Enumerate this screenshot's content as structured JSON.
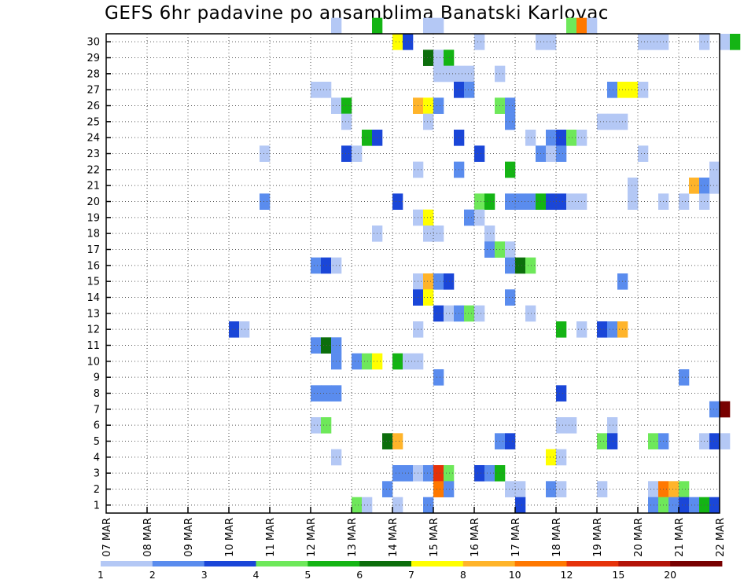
{
  "chart_data": {
    "type": "heatmap",
    "title": "GEFS 6hr padavine po ansamblima Banatski Karlovac",
    "x_tick_labels": [
      "07 MAR",
      "08 MAR",
      "09 MAR",
      "10 MAR",
      "11 MAR",
      "12 MAR",
      "13 MAR",
      "14 MAR",
      "15 MAR",
      "16 MAR",
      "17 MAR",
      "18 MAR",
      "19 MAR",
      "20 MAR",
      "21 MAR",
      "22 MAR"
    ],
    "y_tick_labels": [
      "1",
      "2",
      "3",
      "4",
      "5",
      "6",
      "7",
      "8",
      "9",
      "10",
      "11",
      "12",
      "13",
      "14",
      "15",
      "16",
      "17",
      "18",
      "19",
      "20",
      "21",
      "22",
      "23",
      "24",
      "25",
      "26",
      "27",
      "28",
      "29",
      "30"
    ],
    "grid": true,
    "colorbar": {
      "labels": [
        "1",
        "2",
        "3",
        "4",
        "5",
        "6",
        "7",
        "8",
        "10",
        "12",
        "15",
        "20"
      ],
      "colors": [
        "#b4c8f5",
        "#5a8cee",
        "#1a46d8",
        "#6ee85a",
        "#14b414",
        "#0c6e0c",
        "#ffff00",
        "#ffb42a",
        "#ff7800",
        "#e6320a",
        "#b41408",
        "#780000"
      ]
    },
    "cells": [
      {
        "d": "2025-03-12",
        "h": 12,
        "m": 30,
        "c": 1
      },
      {
        "d": "2025-03-13",
        "h": 12,
        "m": 30,
        "c": 5
      },
      {
        "d": "2025-03-14",
        "h": 18,
        "m": 30,
        "c": 1
      },
      {
        "d": "2025-03-15",
        "h": 0,
        "m": 30,
        "c": 1
      },
      {
        "d": "2025-03-18",
        "h": 6,
        "m": 30,
        "c": 4
      },
      {
        "d": "2025-03-18",
        "h": 12,
        "m": 30,
        "c": 10
      },
      {
        "d": "2025-03-18",
        "h": 18,
        "m": 30,
        "c": 1
      },
      {
        "d": "2025-03-14",
        "h": 0,
        "m": 29,
        "c": 7
      },
      {
        "d": "2025-03-14",
        "h": 6,
        "m": 29,
        "c": 3
      },
      {
        "d": "2025-03-16",
        "h": 0,
        "m": 29,
        "c": 1
      },
      {
        "d": "2025-03-17",
        "h": 12,
        "m": 29,
        "c": 1
      },
      {
        "d": "2025-03-17",
        "h": 18,
        "m": 29,
        "c": 1
      },
      {
        "d": "2025-03-20",
        "h": 0,
        "m": 29,
        "c": 1
      },
      {
        "d": "2025-03-20",
        "h": 6,
        "m": 29,
        "c": 1
      },
      {
        "d": "2025-03-20",
        "h": 12,
        "m": 29,
        "c": 1
      },
      {
        "d": "2025-03-21",
        "h": 12,
        "m": 29,
        "c": 1
      },
      {
        "d": "2025-03-22",
        "h": 0,
        "m": 29,
        "c": 1
      },
      {
        "d": "2025-03-22",
        "h": 6,
        "m": 29,
        "c": 5
      },
      {
        "d": "2025-03-14",
        "h": 18,
        "m": 28,
        "c": 6
      },
      {
        "d": "2025-03-15",
        "h": 0,
        "m": 28,
        "c": 1
      },
      {
        "d": "2025-03-15",
        "h": 6,
        "m": 28,
        "c": 5
      },
      {
        "d": "2025-03-15",
        "h": 0,
        "m": 27,
        "c": 1
      },
      {
        "d": "2025-03-15",
        "h": 6,
        "m": 27,
        "c": 1
      },
      {
        "d": "2025-03-15",
        "h": 12,
        "m": 27,
        "c": 1
      },
      {
        "d": "2025-03-15",
        "h": 18,
        "m": 27,
        "c": 1
      },
      {
        "d": "2025-03-16",
        "h": 12,
        "m": 27,
        "c": 1
      },
      {
        "d": "2025-03-12",
        "h": 0,
        "m": 26,
        "c": 1
      },
      {
        "d": "2025-03-12",
        "h": 6,
        "m": 26,
        "c": 1
      },
      {
        "d": "2025-03-15",
        "h": 12,
        "m": 26,
        "c": 3
      },
      {
        "d": "2025-03-15",
        "h": 18,
        "m": 26,
        "c": 2
      },
      {
        "d": "2025-03-19",
        "h": 6,
        "m": 26,
        "c": 2
      },
      {
        "d": "2025-03-19",
        "h": 12,
        "m": 26,
        "c": 7
      },
      {
        "d": "2025-03-19",
        "h": 18,
        "m": 26,
        "c": 7
      },
      {
        "d": "2025-03-20",
        "h": 0,
        "m": 26,
        "c": 1
      },
      {
        "d": "2025-03-12",
        "h": 12,
        "m": 25,
        "c": 1
      },
      {
        "d": "2025-03-12",
        "h": 18,
        "m": 25,
        "c": 5
      },
      {
        "d": "2025-03-14",
        "h": 12,
        "m": 25,
        "c": 8
      },
      {
        "d": "2025-03-14",
        "h": 18,
        "m": 25,
        "c": 7
      },
      {
        "d": "2025-03-15",
        "h": 0,
        "m": 25,
        "c": 2
      },
      {
        "d": "2025-03-16",
        "h": 12,
        "m": 25,
        "c": 4
      },
      {
        "d": "2025-03-16",
        "h": 18,
        "m": 25,
        "c": 2
      },
      {
        "d": "2025-03-12",
        "h": 18,
        "m": 24,
        "c": 1
      },
      {
        "d": "2025-03-14",
        "h": 18,
        "m": 24,
        "c": 1
      },
      {
        "d": "2025-03-16",
        "h": 18,
        "m": 24,
        "c": 2
      },
      {
        "d": "2025-03-19",
        "h": 0,
        "m": 24,
        "c": 1
      },
      {
        "d": "2025-03-19",
        "h": 6,
        "m": 24,
        "c": 1
      },
      {
        "d": "2025-03-19",
        "h": 12,
        "m": 24,
        "c": 1
      },
      {
        "d": "2025-03-13",
        "h": 6,
        "m": 23,
        "c": 5
      },
      {
        "d": "2025-03-13",
        "h": 12,
        "m": 23,
        "c": 3
      },
      {
        "d": "2025-03-15",
        "h": 12,
        "m": 23,
        "c": 3
      },
      {
        "d": "2025-03-17",
        "h": 6,
        "m": 23,
        "c": 1
      },
      {
        "d": "2025-03-17",
        "h": 18,
        "m": 23,
        "c": 2
      },
      {
        "d": "2025-03-18",
        "h": 0,
        "m": 23,
        "c": 3
      },
      {
        "d": "2025-03-18",
        "h": 6,
        "m": 23,
        "c": 4
      },
      {
        "d": "2025-03-18",
        "h": 12,
        "m": 23,
        "c": 1
      },
      {
        "d": "2025-03-10",
        "h": 18,
        "m": 22,
        "c": 1
      },
      {
        "d": "2025-03-12",
        "h": 18,
        "m": 22,
        "c": 3
      },
      {
        "d": "2025-03-13",
        "h": 0,
        "m": 22,
        "c": 1
      },
      {
        "d": "2025-03-16",
        "h": 0,
        "m": 22,
        "c": 3
      },
      {
        "d": "2025-03-17",
        "h": 12,
        "m": 22,
        "c": 2
      },
      {
        "d": "2025-03-17",
        "h": 18,
        "m": 22,
        "c": 1
      },
      {
        "d": "2025-03-18",
        "h": 0,
        "m": 22,
        "c": 2
      },
      {
        "d": "2025-03-20",
        "h": 0,
        "m": 22,
        "c": 1
      },
      {
        "d": "2025-03-14",
        "h": 12,
        "m": 21,
        "c": 1
      },
      {
        "d": "2025-03-15",
        "h": 12,
        "m": 21,
        "c": 2
      },
      {
        "d": "2025-03-16",
        "h": 18,
        "m": 21,
        "c": 5
      },
      {
        "d": "2025-03-21",
        "h": 18,
        "m": 21,
        "c": 1
      },
      {
        "d": "2025-03-19",
        "h": 18,
        "m": 20,
        "c": 1
      },
      {
        "d": "2025-03-21",
        "h": 6,
        "m": 20,
        "c": 8
      },
      {
        "d": "2025-03-21",
        "h": 12,
        "m": 20,
        "c": 2
      },
      {
        "d": "2025-03-21",
        "h": 18,
        "m": 20,
        "c": 1
      },
      {
        "d": "2025-03-10",
        "h": 18,
        "m": 19,
        "c": 2
      },
      {
        "d": "2025-03-14",
        "h": 0,
        "m": 19,
        "c": 3
      },
      {
        "d": "2025-03-16",
        "h": 0,
        "m": 19,
        "c": 4
      },
      {
        "d": "2025-03-16",
        "h": 6,
        "m": 19,
        "c": 5
      },
      {
        "d": "2025-03-16",
        "h": 18,
        "m": 19,
        "c": 2
      },
      {
        "d": "2025-03-17",
        "h": 0,
        "m": 19,
        "c": 2
      },
      {
        "d": "2025-03-17",
        "h": 6,
        "m": 19,
        "c": 2
      },
      {
        "d": "2025-03-17",
        "h": 12,
        "m": 19,
        "c": 5
      },
      {
        "d": "2025-03-17",
        "h": 18,
        "m": 19,
        "c": 3
      },
      {
        "d": "2025-03-18",
        "h": 0,
        "m": 19,
        "c": 3
      },
      {
        "d": "2025-03-18",
        "h": 6,
        "m": 19,
        "c": 1
      },
      {
        "d": "2025-03-18",
        "h": 12,
        "m": 19,
        "c": 1
      },
      {
        "d": "2025-03-19",
        "h": 18,
        "m": 19,
        "c": 1
      },
      {
        "d": "2025-03-20",
        "h": 12,
        "m": 19,
        "c": 1
      },
      {
        "d": "2025-03-21",
        "h": 0,
        "m": 19,
        "c": 1
      },
      {
        "d": "2025-03-21",
        "h": 12,
        "m": 19,
        "c": 1
      },
      {
        "d": "2025-03-13",
        "h": 12,
        "m": 17,
        "c": 1
      },
      {
        "d": "2025-03-14",
        "h": 12,
        "m": 18,
        "c": 1
      },
      {
        "d": "2025-03-14",
        "h": 18,
        "m": 18,
        "c": 7
      },
      {
        "d": "2025-03-15",
        "h": 18,
        "m": 18,
        "c": 2
      },
      {
        "d": "2025-03-16",
        "h": 0,
        "m": 18,
        "c": 1
      },
      {
        "d": "2025-03-14",
        "h": 18,
        "m": 17,
        "c": 1
      },
      {
        "d": "2025-03-15",
        "h": 0,
        "m": 17,
        "c": 1
      },
      {
        "d": "2025-03-16",
        "h": 6,
        "m": 17,
        "c": 1
      },
      {
        "d": "2025-03-16",
        "h": 6,
        "m": 16,
        "c": 2
      },
      {
        "d": "2025-03-16",
        "h": 12,
        "m": 16,
        "c": 4
      },
      {
        "d": "2025-03-16",
        "h": 18,
        "m": 16,
        "c": 1
      },
      {
        "d": "2025-03-12",
        "h": 0,
        "m": 15,
        "c": 2
      },
      {
        "d": "2025-03-12",
        "h": 6,
        "m": 15,
        "c": 3
      },
      {
        "d": "2025-03-12",
        "h": 12,
        "m": 15,
        "c": 1
      },
      {
        "d": "2025-03-16",
        "h": 18,
        "m": 15,
        "c": 2
      },
      {
        "d": "2025-03-17",
        "h": 0,
        "m": 15,
        "c": 6
      },
      {
        "d": "2025-03-17",
        "h": 6,
        "m": 15,
        "c": 4
      },
      {
        "d": "2025-03-14",
        "h": 12,
        "m": 14,
        "c": 1
      },
      {
        "d": "2025-03-14",
        "h": 18,
        "m": 14,
        "c": 8
      },
      {
        "d": "2025-03-15",
        "h": 0,
        "m": 14,
        "c": 2
      },
      {
        "d": "2025-03-15",
        "h": 6,
        "m": 14,
        "c": 3
      },
      {
        "d": "2025-03-19",
        "h": 12,
        "m": 14,
        "c": 2
      },
      {
        "d": "2025-03-14",
        "h": 12,
        "m": 13,
        "c": 3
      },
      {
        "d": "2025-03-14",
        "h": 18,
        "m": 13,
        "c": 7
      },
      {
        "d": "2025-03-16",
        "h": 18,
        "m": 13,
        "c": 2
      },
      {
        "d": "2025-03-15",
        "h": 0,
        "m": 12,
        "c": 3
      },
      {
        "d": "2025-03-15",
        "h": 6,
        "m": 12,
        "c": 1
      },
      {
        "d": "2025-03-15",
        "h": 12,
        "m": 12,
        "c": 2
      },
      {
        "d": "2025-03-15",
        "h": 18,
        "m": 12,
        "c": 4
      },
      {
        "d": "2025-03-16",
        "h": 0,
        "m": 12,
        "c": 1
      },
      {
        "d": "2025-03-17",
        "h": 6,
        "m": 12,
        "c": 1
      },
      {
        "d": "2025-03-10",
        "h": 0,
        "m": 11,
        "c": 3
      },
      {
        "d": "2025-03-10",
        "h": 6,
        "m": 11,
        "c": 1
      },
      {
        "d": "2025-03-14",
        "h": 12,
        "m": 11,
        "c": 1
      },
      {
        "d": "2025-03-18",
        "h": 0,
        "m": 11,
        "c": 5
      },
      {
        "d": "2025-03-18",
        "h": 12,
        "m": 11,
        "c": 1
      },
      {
        "d": "2025-03-19",
        "h": 0,
        "m": 11,
        "c": 3
      },
      {
        "d": "2025-03-19",
        "h": 6,
        "m": 11,
        "c": 2
      },
      {
        "d": "2025-03-19",
        "h": 12,
        "m": 11,
        "c": 8
      },
      {
        "d": "2025-03-12",
        "h": 0,
        "m": 10,
        "c": 2
      },
      {
        "d": "2025-03-12",
        "h": 6,
        "m": 10,
        "c": 6
      },
      {
        "d": "2025-03-12",
        "h": 12,
        "m": 10,
        "c": 2
      },
      {
        "d": "2025-03-12",
        "h": 12,
        "m": 9,
        "c": 2
      },
      {
        "d": "2025-03-13",
        "h": 0,
        "m": 9,
        "c": 2
      },
      {
        "d": "2025-03-13",
        "h": 6,
        "m": 9,
        "c": 4
      },
      {
        "d": "2025-03-13",
        "h": 12,
        "m": 9,
        "c": 7
      },
      {
        "d": "2025-03-14",
        "h": 0,
        "m": 9,
        "c": 5
      },
      {
        "d": "2025-03-14",
        "h": 6,
        "m": 9,
        "c": 1
      },
      {
        "d": "2025-03-14",
        "h": 12,
        "m": 9,
        "c": 1
      },
      {
        "d": "2025-03-15",
        "h": 0,
        "m": 8,
        "c": 2
      },
      {
        "d": "2025-03-21",
        "h": 0,
        "m": 8,
        "c": 2
      },
      {
        "d": "2025-03-12",
        "h": 0,
        "m": 7,
        "c": 2
      },
      {
        "d": "2025-03-12",
        "h": 6,
        "m": 7,
        "c": 2
      },
      {
        "d": "2025-03-12",
        "h": 12,
        "m": 7,
        "c": 2
      },
      {
        "d": "2025-03-18",
        "h": 0,
        "m": 7,
        "c": 3
      },
      {
        "d": "2025-03-21",
        "h": 18,
        "m": 6,
        "c": 2
      },
      {
        "d": "2025-03-22",
        "h": 0,
        "m": 6,
        "c": 20
      },
      {
        "d": "2025-03-12",
        "h": 0,
        "m": 5,
        "c": 1
      },
      {
        "d": "2025-03-12",
        "h": 6,
        "m": 5,
        "c": 4
      },
      {
        "d": "2025-03-18",
        "h": 0,
        "m": 5,
        "c": 1
      },
      {
        "d": "2025-03-18",
        "h": 6,
        "m": 5,
        "c": 1
      },
      {
        "d": "2025-03-19",
        "h": 6,
        "m": 5,
        "c": 1
      },
      {
        "d": "2025-03-13",
        "h": 18,
        "m": 4,
        "c": 6
      },
      {
        "d": "2025-03-14",
        "h": 0,
        "m": 4,
        "c": 8
      },
      {
        "d": "2025-03-16",
        "h": 12,
        "m": 4,
        "c": 2
      },
      {
        "d": "2025-03-16",
        "h": 18,
        "m": 4,
        "c": 3
      },
      {
        "d": "2025-03-19",
        "h": 0,
        "m": 4,
        "c": 4
      },
      {
        "d": "2025-03-19",
        "h": 6,
        "m": 4,
        "c": 3
      },
      {
        "d": "2025-03-20",
        "h": 6,
        "m": 4,
        "c": 4
      },
      {
        "d": "2025-03-20",
        "h": 12,
        "m": 4,
        "c": 2
      },
      {
        "d": "2025-03-21",
        "h": 12,
        "m": 4,
        "c": 1
      },
      {
        "d": "2025-03-21",
        "h": 18,
        "m": 4,
        "c": 3
      },
      {
        "d": "2025-03-22",
        "h": 0,
        "m": 4,
        "c": 1
      },
      {
        "d": "2025-03-12",
        "h": 12,
        "m": 3,
        "c": 1
      },
      {
        "d": "2025-03-17",
        "h": 18,
        "m": 3,
        "c": 7
      },
      {
        "d": "2025-03-18",
        "h": 0,
        "m": 3,
        "c": 1
      },
      {
        "d": "2025-03-14",
        "h": 0,
        "m": 2,
        "c": 2
      },
      {
        "d": "2025-03-14",
        "h": 6,
        "m": 2,
        "c": 2
      },
      {
        "d": "2025-03-14",
        "h": 12,
        "m": 2,
        "c": 1
      },
      {
        "d": "2025-03-14",
        "h": 18,
        "m": 2,
        "c": 2
      },
      {
        "d": "2025-03-15",
        "h": 0,
        "m": 2,
        "c": 12
      },
      {
        "d": "2025-03-15",
        "h": 6,
        "m": 2,
        "c": 4
      },
      {
        "d": "2025-03-16",
        "h": 0,
        "m": 2,
        "c": 3
      },
      {
        "d": "2025-03-16",
        "h": 6,
        "m": 2,
        "c": 2
      },
      {
        "d": "2025-03-16",
        "h": 12,
        "m": 2,
        "c": 5
      },
      {
        "d": "2025-03-13",
        "h": 18,
        "m": 1,
        "c": 2
      },
      {
        "d": "2025-03-15",
        "h": 0,
        "m": 1,
        "c": 10
      },
      {
        "d": "2025-03-15",
        "h": 6,
        "m": 1,
        "c": 2
      },
      {
        "d": "2025-03-16",
        "h": 18,
        "m": 1,
        "c": 1
      },
      {
        "d": "2025-03-17",
        "h": 0,
        "m": 1,
        "c": 1
      },
      {
        "d": "2025-03-17",
        "h": 18,
        "m": 1,
        "c": 2
      },
      {
        "d": "2025-03-18",
        "h": 0,
        "m": 1,
        "c": 1
      },
      {
        "d": "2025-03-19",
        "h": 0,
        "m": 1,
        "c": 1
      },
      {
        "d": "2025-03-20",
        "h": 6,
        "m": 1,
        "c": 1
      },
      {
        "d": "2025-03-20",
        "h": 12,
        "m": 1,
        "c": 10
      },
      {
        "d": "2025-03-20",
        "h": 18,
        "m": 1,
        "c": 8
      },
      {
        "d": "2025-03-21",
        "h": 0,
        "m": 1,
        "c": 4
      },
      {
        "d": "2025-03-13",
        "h": 0,
        "m": 0,
        "c": 4
      },
      {
        "d": "2025-03-13",
        "h": 6,
        "m": 0,
        "c": 1
      },
      {
        "d": "2025-03-14",
        "h": 0,
        "m": 0,
        "c": 1
      },
      {
        "d": "2025-03-14",
        "h": 18,
        "m": 0,
        "c": 2
      },
      {
        "d": "2025-03-17",
        "h": 0,
        "m": 0,
        "c": 3
      },
      {
        "d": "2025-03-20",
        "h": 6,
        "m": 0,
        "c": 2
      },
      {
        "d": "2025-03-20",
        "h": 12,
        "m": 0,
        "c": 4
      },
      {
        "d": "2025-03-20",
        "h": 18,
        "m": 0,
        "c": 2
      },
      {
        "d": "2025-03-21",
        "h": 0,
        "m": 0,
        "c": 3
      },
      {
        "d": "2025-03-21",
        "h": 6,
        "m": 0,
        "c": 2
      },
      {
        "d": "2025-03-21",
        "h": 12,
        "m": 0,
        "c": 5
      },
      {
        "d": "2025-03-21",
        "h": 18,
        "m": 0,
        "c": 3
      }
    ]
  }
}
